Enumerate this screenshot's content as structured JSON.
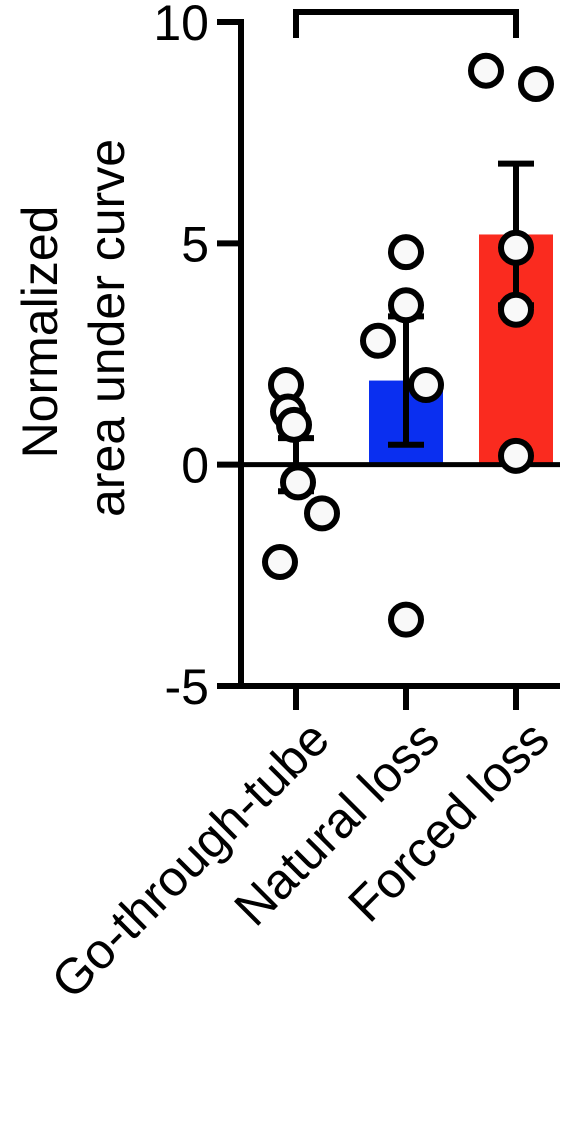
{
  "chart_data": {
    "type": "bar",
    "title": "",
    "xlabel": "",
    "ylabel_lines": [
      "Normalized",
      "area under curve"
    ],
    "ylim": [
      -5,
      10
    ],
    "yticks": [
      -5,
      0,
      5,
      10
    ],
    "ytick_labels": [
      "-5",
      "0",
      "5",
      "10"
    ],
    "categories": [
      "Go-through-tube",
      "Natural loss",
      "Forced loss"
    ],
    "values": [
      0.0,
      1.9,
      5.2
    ],
    "error_sem": [
      0.6,
      1.45,
      1.6
    ],
    "bar_colors": [
      "#a5a5aa",
      "#0a2ff0",
      "#fa2b1f"
    ],
    "points": [
      [
        1.8,
        1.2,
        0.9,
        -0.4,
        -1.1,
        -2.2
      ],
      [
        4.8,
        3.6,
        2.8,
        1.8,
        -3.5
      ],
      [
        8.9,
        8.6,
        4.9,
        3.5,
        0.2
      ]
    ],
    "significance_bracket": {
      "from": 0,
      "to": 2
    },
    "grid": false,
    "legend": "none"
  }
}
